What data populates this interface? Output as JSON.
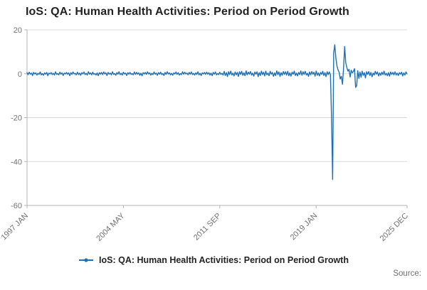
{
  "source_label": "Source:",
  "chart_data": {
    "type": "line",
    "title": "IoS: QA: Human Health Activities: Period on Period Growth",
    "legend": "IoS: QA: Human Health Activities: Period on Period Growth",
    "xlabel": "",
    "ylabel": "",
    "ylim": [
      -60,
      20
    ],
    "yticks": [
      20,
      0,
      -20,
      -40,
      -60
    ],
    "x_start": "1997 JAN",
    "x_end": "2025 DEC",
    "xticks": [
      {
        "index": 0,
        "label": "1997 JAN"
      },
      {
        "index": 88,
        "label": "2004 MAY"
      },
      {
        "index": 176,
        "label": "2011 SEP"
      },
      {
        "index": 264,
        "label": "2019 JAN"
      },
      {
        "index": 347,
        "label": "2025 DEC"
      }
    ],
    "line_color": "#1d70b8",
    "grid_color": "#d9d9d9",
    "axis_color": "#b3b3b3",
    "tick_text_color": "#707071",
    "values": [
      0.5,
      -0.4,
      0.7,
      -0.2,
      0.3,
      -0.8,
      0.6,
      -0.1,
      0.4,
      -0.6,
      0.2,
      -0.3,
      0.8,
      -0.5,
      0.1,
      -0.7,
      0.4,
      -0.2,
      0.6,
      -0.9,
      0.3,
      -0.1,
      0.5,
      -0.4,
      0.2,
      -0.6,
      0.9,
      -0.3,
      0.1,
      -0.5,
      0.7,
      -0.2,
      0.4,
      -0.8,
      0.3,
      -0.1,
      0.6,
      -0.2,
      0.4,
      -0.9,
      0.5,
      -0.3,
      0.8,
      -0.1,
      0.2,
      -0.5,
      0.7,
      -0.4,
      0.3,
      -0.7,
      0.5,
      -0.1,
      0.8,
      -0.4,
      0.2,
      -0.6,
      0.9,
      -0.2,
      0.4,
      -0.5,
      0.7,
      -0.3,
      0.1,
      -0.6,
      0.4,
      -0.9,
      0.5,
      -0.2,
      0.6,
      -0.4,
      0.8,
      -0.1,
      0.4,
      -0.8,
      0.6,
      -0.2,
      0.3,
      -0.5,
      0.9,
      -0.3,
      0.1,
      -0.7,
      0.5,
      -0.2,
      0.9,
      -0.4,
      0.2,
      -0.6,
      0.7,
      -0.1,
      0.3,
      -0.8,
      0.5,
      -0.2,
      0.6,
      -0.3,
      0.1,
      -0.5,
      0.8,
      -0.3,
      0.6,
      -0.2,
      0.4,
      -0.7,
      0.2,
      -0.9,
      0.5,
      -0.1,
      0.6,
      -0.3,
      0.9,
      -0.1,
      0.4,
      -0.6,
      0.2,
      -0.4,
      0.8,
      -0.2,
      0.3,
      -0.7,
      0.5,
      -0.2,
      0.7,
      -0.4,
      0.1,
      -0.8,
      0.6,
      -0.3,
      0.9,
      -0.1,
      0.4,
      -0.5,
      0.2,
      -0.7,
      0.4,
      -0.1,
      0.8,
      -0.3,
      0.5,
      -0.6,
      0.1,
      -0.4,
      0.9,
      -0.2,
      0.7,
      -0.1,
      0.3,
      -0.5,
      0.6,
      -0.2,
      0.8,
      -0.4,
      0.2,
      -0.6,
      0.4,
      -0.3,
      0.9,
      -0.5,
      0.2,
      -0.8,
      0.4,
      -0.1,
      0.6,
      -0.3,
      0.7,
      -0.2,
      0.5,
      -0.6,
      0.3,
      -0.9,
      0.6,
      -0.2,
      0.8,
      -0.5,
      0.1,
      -0.4,
      0.7,
      -0.3,
      0.2,
      -0.6,
      1.1,
      -0.8,
      0.5,
      -1.3,
      0.9,
      -0.4,
      1.2,
      -0.6,
      0.3,
      -1.0,
      0.8,
      -0.5,
      0.6,
      -1.2,
      0.9,
      -0.3,
      1.1,
      -0.7,
      0.4,
      -0.9,
      1.3,
      -0.5,
      0.7,
      -0.2,
      1.0,
      -0.6,
      0.3,
      -1.1,
      0.8,
      -0.2,
      0.9,
      -1.3,
      0.5,
      -0.8,
      1.2,
      -0.4,
      0.7,
      -1.0,
      1.2,
      -0.5,
      0.3,
      -0.9,
      1.1,
      -0.2,
      0.6,
      -1.2,
      0.4,
      -0.8,
      1.3,
      -0.4,
      0.8,
      -1.2,
      0.5,
      -0.7,
      1.0,
      -0.3,
      0.9,
      -0.6,
      1.1,
      -0.9,
      0.4,
      -1.1,
      0.7,
      -0.2,
      1.2,
      -0.8,
      0.3,
      -1.0,
      0.6,
      -0.4,
      1.3,
      -0.7,
      0.9,
      -0.3,
      1.1,
      -0.6,
      0.2,
      -1.2,
      0.8,
      -0.5,
      1.0,
      -0.2,
      0.7,
      -1.1,
      1.2,
      -0.7,
      0.4,
      -1.0,
      0.6,
      -0.3,
      1.1,
      -0.8,
      0.5,
      -1.3,
      0.9,
      -0.4,
      0.8,
      -0.5,
      -19.0,
      -48.2,
      9.5,
      13.2,
      7.0,
      3.5,
      1.8,
      0.6,
      -2.4,
      -1.2,
      -4.8,
      2.2,
      12.4,
      5.1,
      2.8,
      1.2,
      2.0,
      -1.5,
      1.6,
      0.4,
      1.1,
      2.3,
      -6.2,
      -5.5,
      1.4,
      -2.1,
      0.8,
      -1.6,
      1.2,
      -0.7,
      0.5,
      -1.9,
      0.9,
      -0.3,
      1.0,
      -0.8,
      0.6,
      -1.4,
      0.3,
      -0.6,
      1.1,
      -0.2,
      0.8,
      -1.0,
      0.4,
      -0.7,
      0.7,
      -0.4,
      1.2,
      -0.6,
      0.2,
      -0.9,
      0.5,
      -1.1,
      0.8,
      -0.3,
      0.6,
      -0.5,
      0.9,
      -0.6,
      0.3,
      -0.8,
      0.5,
      -0.2,
      0.7,
      -1.0,
      0.4,
      -0.6,
      0.8,
      -0.1
    ]
  }
}
